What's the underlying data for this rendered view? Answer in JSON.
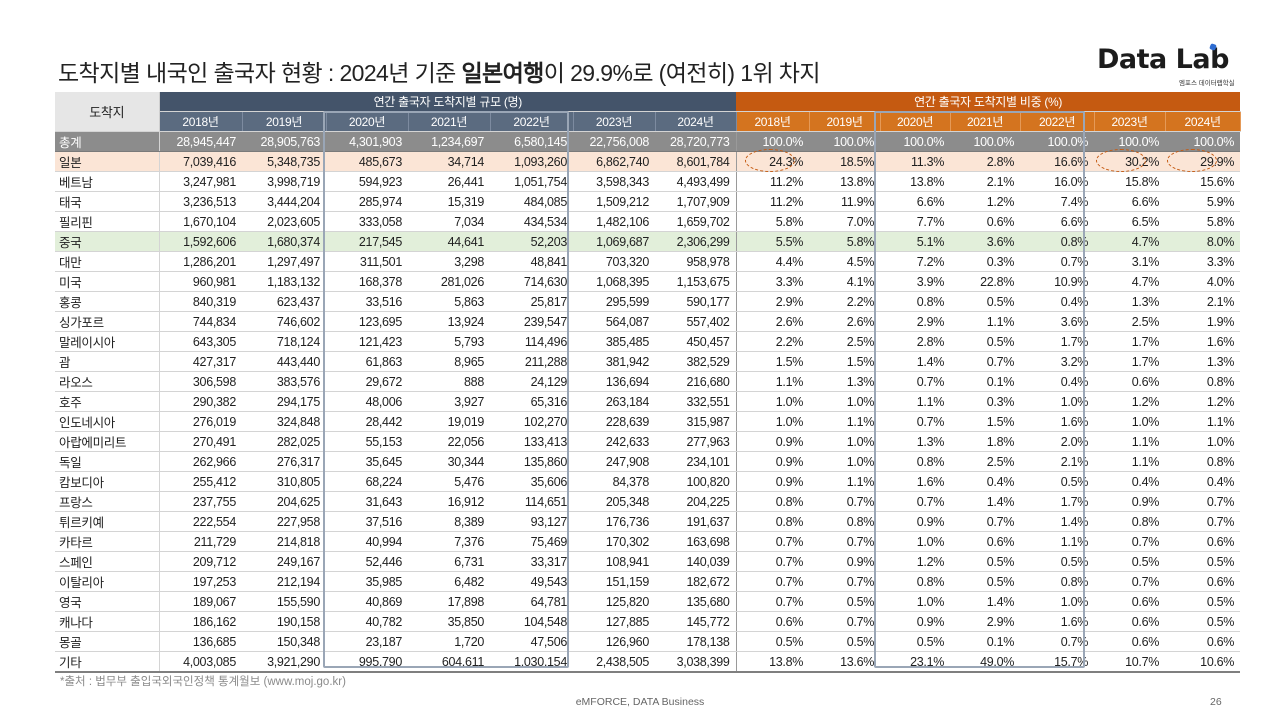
{
  "title": {
    "before": "도착지별 내국인 출국자 현황 : 2024년 기준 ",
    "bold": "일본여행",
    "after": "이 29.9%로 (여전히) 1위 차지"
  },
  "logo": {
    "text": "Data Lab",
    "sub": "엠포스 데이터랩학실"
  },
  "table": {
    "row_header": "도착지",
    "group_size": "연간 출국자 도착지별 규모 (명)",
    "group_share": "연간 출국자 도착지별 비중 (%)",
    "years": [
      "2018년",
      "2019년",
      "2020년",
      "2021년",
      "2022년",
      "2023년",
      "2024년"
    ],
    "rows": [
      {
        "name": "총계",
        "size": [
          "28,945,447",
          "28,905,763",
          "4,301,903",
          "1,234,697",
          "6,580,145",
          "22,756,008",
          "28,720,773"
        ],
        "share": [
          "100.0%",
          "100.0%",
          "100.0%",
          "100.0%",
          "100.0%",
          "100.0%",
          "100.0%"
        ]
      },
      {
        "name": "일본",
        "size": [
          "7,039,416",
          "5,348,735",
          "485,673",
          "34,714",
          "1,093,260",
          "6,862,740",
          "8,601,784"
        ],
        "share": [
          "24.3%",
          "18.5%",
          "11.3%",
          "2.8%",
          "16.6%",
          "30.2%",
          "29.9%"
        ]
      },
      {
        "name": "베트남",
        "size": [
          "3,247,981",
          "3,998,719",
          "594,923",
          "26,441",
          "1,051,754",
          "3,598,343",
          "4,493,499"
        ],
        "share": [
          "11.2%",
          "13.8%",
          "13.8%",
          "2.1%",
          "16.0%",
          "15.8%",
          "15.6%"
        ]
      },
      {
        "name": "태국",
        "size": [
          "3,236,513",
          "3,444,204",
          "285,974",
          "15,319",
          "484,085",
          "1,509,212",
          "1,707,909"
        ],
        "share": [
          "11.2%",
          "11.9%",
          "6.6%",
          "1.2%",
          "7.4%",
          "6.6%",
          "5.9%"
        ]
      },
      {
        "name": "필리핀",
        "size": [
          "1,670,104",
          "2,023,605",
          "333,058",
          "7,034",
          "434,534",
          "1,482,106",
          "1,659,702"
        ],
        "share": [
          "5.8%",
          "7.0%",
          "7.7%",
          "0.6%",
          "6.6%",
          "6.5%",
          "5.8%"
        ]
      },
      {
        "name": "중국",
        "size": [
          "1,592,606",
          "1,680,374",
          "217,545",
          "44,641",
          "52,203",
          "1,069,687",
          "2,306,299"
        ],
        "share": [
          "5.5%",
          "5.8%",
          "5.1%",
          "3.6%",
          "0.8%",
          "4.7%",
          "8.0%"
        ]
      },
      {
        "name": "대만",
        "size": [
          "1,286,201",
          "1,297,497",
          "311,501",
          "3,298",
          "48,841",
          "703,320",
          "958,978"
        ],
        "share": [
          "4.4%",
          "4.5%",
          "7.2%",
          "0.3%",
          "0.7%",
          "3.1%",
          "3.3%"
        ]
      },
      {
        "name": "미국",
        "size": [
          "960,981",
          "1,183,132",
          "168,378",
          "281,026",
          "714,630",
          "1,068,395",
          "1,153,675"
        ],
        "share": [
          "3.3%",
          "4.1%",
          "3.9%",
          "22.8%",
          "10.9%",
          "4.7%",
          "4.0%"
        ]
      },
      {
        "name": "홍콩",
        "size": [
          "840,319",
          "623,437",
          "33,516",
          "5,863",
          "25,817",
          "295,599",
          "590,177"
        ],
        "share": [
          "2.9%",
          "2.2%",
          "0.8%",
          "0.5%",
          "0.4%",
          "1.3%",
          "2.1%"
        ]
      },
      {
        "name": "싱가포르",
        "size": [
          "744,834",
          "746,602",
          "123,695",
          "13,924",
          "239,547",
          "564,087",
          "557,402"
        ],
        "share": [
          "2.6%",
          "2.6%",
          "2.9%",
          "1.1%",
          "3.6%",
          "2.5%",
          "1.9%"
        ]
      },
      {
        "name": "말레이시아",
        "size": [
          "643,305",
          "718,124",
          "121,423",
          "5,793",
          "114,496",
          "385,485",
          "450,457"
        ],
        "share": [
          "2.2%",
          "2.5%",
          "2.8%",
          "0.5%",
          "1.7%",
          "1.7%",
          "1.6%"
        ]
      },
      {
        "name": "괌",
        "size": [
          "427,317",
          "443,440",
          "61,863",
          "8,965",
          "211,288",
          "381,942",
          "382,529"
        ],
        "share": [
          "1.5%",
          "1.5%",
          "1.4%",
          "0.7%",
          "3.2%",
          "1.7%",
          "1.3%"
        ]
      },
      {
        "name": "라오스",
        "size": [
          "306,598",
          "383,576",
          "29,672",
          "888",
          "24,129",
          "136,694",
          "216,680"
        ],
        "share": [
          "1.1%",
          "1.3%",
          "0.7%",
          "0.1%",
          "0.4%",
          "0.6%",
          "0.8%"
        ]
      },
      {
        "name": "호주",
        "size": [
          "290,382",
          "294,175",
          "48,006",
          "3,927",
          "65,316",
          "263,184",
          "332,551"
        ],
        "share": [
          "1.0%",
          "1.0%",
          "1.1%",
          "0.3%",
          "1.0%",
          "1.2%",
          "1.2%"
        ]
      },
      {
        "name": "인도네시아",
        "size": [
          "276,019",
          "324,848",
          "28,442",
          "19,019",
          "102,270",
          "228,639",
          "315,987"
        ],
        "share": [
          "1.0%",
          "1.1%",
          "0.7%",
          "1.5%",
          "1.6%",
          "1.0%",
          "1.1%"
        ]
      },
      {
        "name": "아랍에미리트",
        "size": [
          "270,491",
          "282,025",
          "55,153",
          "22,056",
          "133,413",
          "242,633",
          "277,963"
        ],
        "share": [
          "0.9%",
          "1.0%",
          "1.3%",
          "1.8%",
          "2.0%",
          "1.1%",
          "1.0%"
        ]
      },
      {
        "name": "독일",
        "size": [
          "262,966",
          "276,317",
          "35,645",
          "30,344",
          "135,860",
          "247,908",
          "234,101"
        ],
        "share": [
          "0.9%",
          "1.0%",
          "0.8%",
          "2.5%",
          "2.1%",
          "1.1%",
          "0.8%"
        ]
      },
      {
        "name": "캄보디아",
        "size": [
          "255,412",
          "310,805",
          "68,224",
          "5,476",
          "35,606",
          "84,378",
          "100,820"
        ],
        "share": [
          "0.9%",
          "1.1%",
          "1.6%",
          "0.4%",
          "0.5%",
          "0.4%",
          "0.4%"
        ]
      },
      {
        "name": "프랑스",
        "size": [
          "237,755",
          "204,625",
          "31,643",
          "16,912",
          "114,651",
          "205,348",
          "204,225"
        ],
        "share": [
          "0.8%",
          "0.7%",
          "0.7%",
          "1.4%",
          "1.7%",
          "0.9%",
          "0.7%"
        ]
      },
      {
        "name": "튀르키예",
        "size": [
          "222,554",
          "227,958",
          "37,516",
          "8,389",
          "93,127",
          "176,736",
          "191,637"
        ],
        "share": [
          "0.8%",
          "0.8%",
          "0.9%",
          "0.7%",
          "1.4%",
          "0.8%",
          "0.7%"
        ]
      },
      {
        "name": "카타르",
        "size": [
          "211,729",
          "214,818",
          "40,994",
          "7,376",
          "75,469",
          "170,302",
          "163,698"
        ],
        "share": [
          "0.7%",
          "0.7%",
          "1.0%",
          "0.6%",
          "1.1%",
          "0.7%",
          "0.6%"
        ]
      },
      {
        "name": "스페인",
        "size": [
          "209,712",
          "249,167",
          "52,446",
          "6,731",
          "33,317",
          "108,941",
          "140,039"
        ],
        "share": [
          "0.7%",
          "0.9%",
          "1.2%",
          "0.5%",
          "0.5%",
          "0.5%",
          "0.5%"
        ]
      },
      {
        "name": "이탈리아",
        "size": [
          "197,253",
          "212,194",
          "35,985",
          "6,482",
          "49,543",
          "151,159",
          "182,672"
        ],
        "share": [
          "0.7%",
          "0.7%",
          "0.8%",
          "0.5%",
          "0.8%",
          "0.7%",
          "0.6%"
        ]
      },
      {
        "name": "영국",
        "size": [
          "189,067",
          "155,590",
          "40,869",
          "17,898",
          "64,781",
          "125,820",
          "135,680"
        ],
        "share": [
          "0.7%",
          "0.5%",
          "1.0%",
          "1.4%",
          "1.0%",
          "0.6%",
          "0.5%"
        ]
      },
      {
        "name": "캐나다",
        "size": [
          "186,162",
          "190,158",
          "40,782",
          "35,850",
          "104,548",
          "127,885",
          "145,772"
        ],
        "share": [
          "0.6%",
          "0.7%",
          "0.9%",
          "2.9%",
          "1.6%",
          "0.6%",
          "0.5%"
        ]
      },
      {
        "name": "몽골",
        "size": [
          "136,685",
          "150,348",
          "23,187",
          "1,720",
          "47,506",
          "126,960",
          "178,138"
        ],
        "share": [
          "0.5%",
          "0.5%",
          "0.5%",
          "0.1%",
          "0.7%",
          "0.6%",
          "0.6%"
        ]
      },
      {
        "name": "기타",
        "size": [
          "4,003,085",
          "3,921,290",
          "995,790",
          "604,611",
          "1,030,154",
          "2,438,505",
          "3,038,399"
        ],
        "share": [
          "13.8%",
          "13.6%",
          "23.1%",
          "49.0%",
          "15.7%",
          "10.7%",
          "10.6%"
        ]
      }
    ]
  },
  "colors": {
    "header_blue": "#44546a",
    "header_orange": "#c55a11",
    "japan_row": "#fbe5d6",
    "china_row": "#e2efda",
    "total_row": "#8c8c8c"
  },
  "source": "*출처 : 법무부 출입국외국인정책 통계월보 (www.moj.go.kr)",
  "footer": "eMFORCE, DATA Business",
  "page_number": "26"
}
